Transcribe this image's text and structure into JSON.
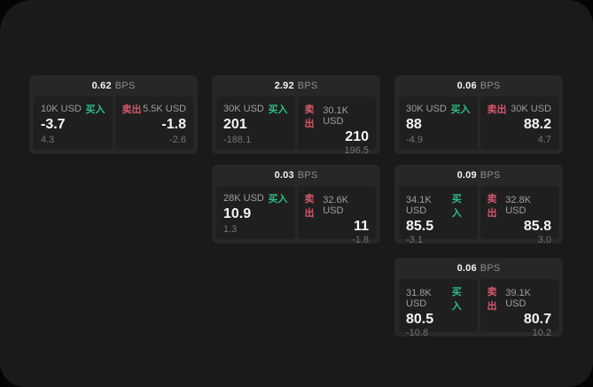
{
  "ui": {
    "bps_unit": "BPS",
    "buy_label": "买入",
    "sell_label": "卖出"
  },
  "colors": {
    "buy_green": "#2ebd85",
    "sell_red": "#d4576b",
    "surface_bg": "#1a1a1a",
    "card_bg": "#272727",
    "panel_bg": "#1f1f1f"
  },
  "cards": [
    {
      "bps": "0.62",
      "buy": {
        "amount": "10K USD",
        "price": "-3.7",
        "change": "4.3"
      },
      "sell": {
        "amount": "5.5K USD",
        "price": "-1.8",
        "change": "-2.6"
      }
    },
    {
      "bps": "2.92",
      "buy": {
        "amount": "30K USD",
        "price": "201",
        "change": "-188.1"
      },
      "sell": {
        "amount": "30.1K USD",
        "price": "210",
        "change": "196.5"
      }
    },
    {
      "bps": "0.06",
      "buy": {
        "amount": "30K USD",
        "price": "88",
        "change": "-4.9"
      },
      "sell": {
        "amount": "30K USD",
        "price": "88.2",
        "change": "4.7"
      }
    },
    {
      "bps": "0.03",
      "buy": {
        "amount": "28K USD",
        "price": "10.9",
        "change": "1.3"
      },
      "sell": {
        "amount": "32.6K USD",
        "price": "11",
        "change": "-1.8"
      }
    },
    {
      "bps": "0.09",
      "buy": {
        "amount": "34.1K USD",
        "price": "85.5",
        "change": "-3.1"
      },
      "sell": {
        "amount": "32.8K USD",
        "price": "85.8",
        "change": "3.0"
      }
    },
    {
      "bps": "0.06",
      "buy": {
        "amount": "31.8K USD",
        "price": "80.5",
        "change": "-10.8"
      },
      "sell": {
        "amount": "39.1K USD",
        "price": "80.7",
        "change": "10.2"
      }
    }
  ]
}
